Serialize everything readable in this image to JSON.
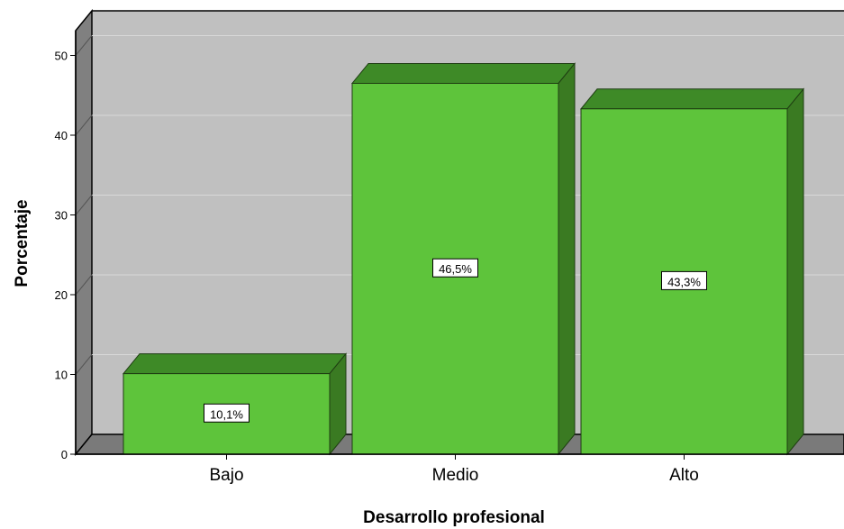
{
  "chart_data": {
    "type": "bar",
    "style": "3d",
    "xlabel": "Desarrollo profesional",
    "ylabel": "Porcentaje",
    "categories": [
      "Bajo",
      "Medio",
      "Alto"
    ],
    "values": [
      10.1,
      46.5,
      43.3
    ],
    "data_labels": [
      "10,1%",
      "46,5%",
      "43,3%"
    ],
    "ylim": [
      0,
      52
    ],
    "yticks": [
      0,
      10,
      20,
      30,
      40,
      50
    ],
    "grid": true,
    "legend": "none",
    "colors": {
      "bar_front": "#5ec43b",
      "bar_top": "#3e8a27",
      "bar_side": "#3a7a22",
      "plot_background": "#c0c0c0",
      "left_wall": "#808080",
      "floor": "#7a7a7a",
      "gridline": "#d8d8d8"
    }
  }
}
